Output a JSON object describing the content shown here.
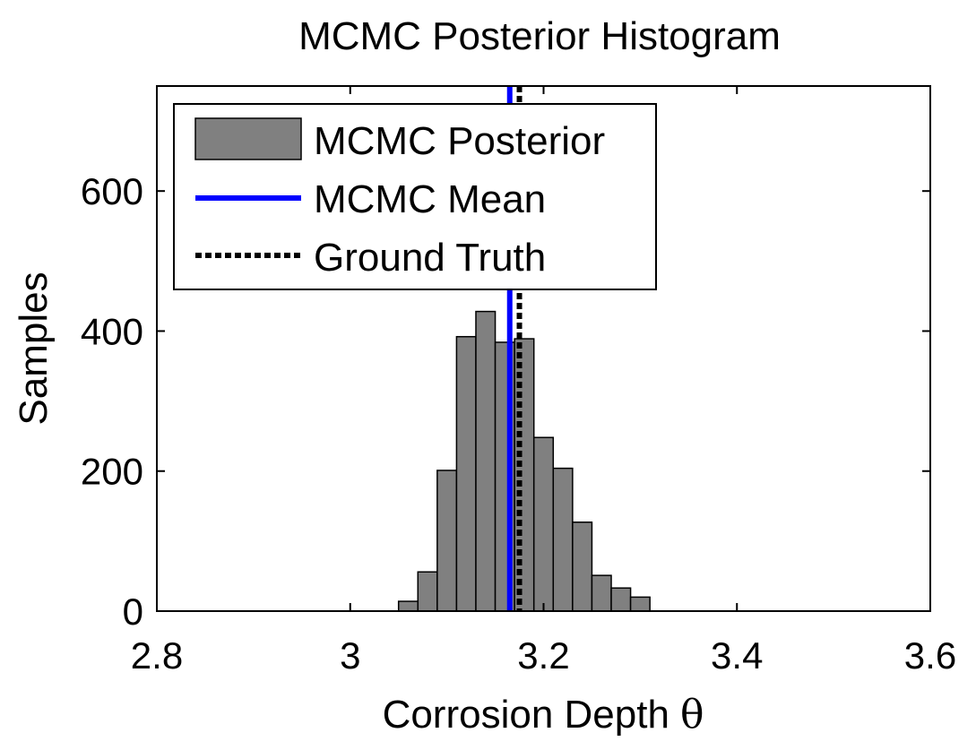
{
  "chart_data": {
    "type": "bar",
    "title": "MCMC Posterior Histogram",
    "xlabel": "Corrosion Depth",
    "xlabel_symbol": "θ",
    "ylabel": "Samples",
    "xlim": [
      2.8,
      3.6
    ],
    "ylim": [
      0,
      750
    ],
    "xticks": [
      "2.8",
      "3",
      "3.2",
      "3.4",
      "3.6"
    ],
    "yticks": [
      "0",
      "200",
      "400",
      "600"
    ],
    "xtick_values": [
      2.8,
      3.0,
      3.2,
      3.4,
      3.6
    ],
    "ytick_values": [
      0,
      200,
      400,
      600
    ],
    "bin_width": 0.02,
    "bins": [
      {
        "x0": 3.05,
        "x1": 3.07,
        "value": 14
      },
      {
        "x0": 3.07,
        "x1": 3.09,
        "value": 56
      },
      {
        "x0": 3.09,
        "x1": 3.11,
        "value": 201
      },
      {
        "x0": 3.11,
        "x1": 3.13,
        "value": 392
      },
      {
        "x0": 3.13,
        "x1": 3.15,
        "value": 428
      },
      {
        "x0": 3.15,
        "x1": 3.17,
        "value": 384
      },
      {
        "x0": 3.17,
        "x1": 3.19,
        "value": 389
      },
      {
        "x0": 3.19,
        "x1": 3.21,
        "value": 248
      },
      {
        "x0": 3.21,
        "x1": 3.23,
        "value": 204
      },
      {
        "x0": 3.23,
        "x1": 3.25,
        "value": 127
      },
      {
        "x0": 3.25,
        "x1": 3.27,
        "value": 51
      },
      {
        "x0": 3.27,
        "x1": 3.29,
        "value": 33
      },
      {
        "x0": 3.29,
        "x1": 3.31,
        "value": 20
      }
    ],
    "mean_line": {
      "x": 3.165,
      "label": "MCMC Mean",
      "color": "#0000ff",
      "style": "solid"
    },
    "truth_line": {
      "x": 3.175,
      "label": "Ground Truth",
      "color": "#000000",
      "style": "dashed"
    },
    "series": [
      {
        "name": "MCMC Posterior",
        "color": "#808080"
      },
      {
        "name": "MCMC Mean",
        "color": "#0000ff"
      },
      {
        "name": "Ground Truth",
        "color": "#000000"
      }
    ],
    "legend_position": "top-left",
    "grid": false
  }
}
